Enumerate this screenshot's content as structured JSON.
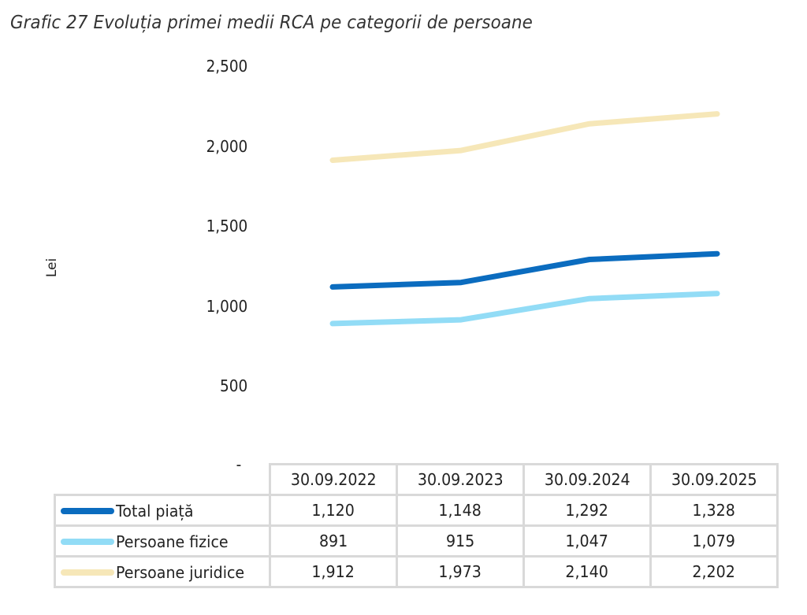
{
  "chart_data": {
    "type": "line",
    "title": "Grafic 27 Evoluția primei medii RCA pe categorii de persoane",
    "xlabel": "",
    "ylabel": "Lei",
    "ylim": [
      0,
      2500
    ],
    "yticks": [
      0,
      500,
      1000,
      1500,
      2000,
      2500
    ],
    "ytick_labels": [
      "-",
      "500",
      "1,000",
      "1,500",
      "2,000",
      "2,500"
    ],
    "grid": false,
    "legend_placement": "bottom-data-table",
    "categories": [
      "30.09.2022",
      "30.09.2023",
      "30.09.2024",
      "30.09.2025"
    ],
    "series": [
      {
        "name": "Total piață",
        "color": "#0b6cbf",
        "values": [
          1120,
          1148,
          1292,
          1328
        ],
        "labels": [
          "1,120",
          "1,148",
          "1,292",
          "1,328"
        ]
      },
      {
        "name": "Persoane fizice",
        "color": "#92dcf6",
        "values": [
          891,
          915,
          1047,
          1079
        ],
        "labels": [
          "891",
          "915",
          "1,047",
          "1,079"
        ]
      },
      {
        "name": "Persoane juridice",
        "color": "#f6e7b8",
        "values": [
          1912,
          1973,
          2140,
          2202
        ],
        "labels": [
          "1,912",
          "1,973",
          "2,140",
          "2,202"
        ]
      }
    ]
  }
}
